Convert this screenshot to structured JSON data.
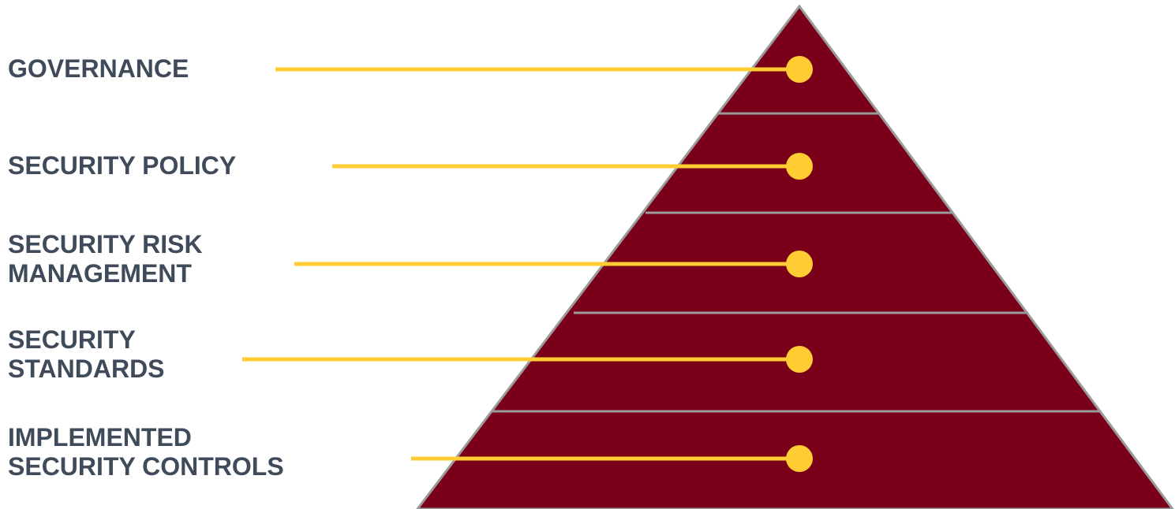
{
  "diagram": {
    "colors": {
      "pyramid_fill": "#7a0019",
      "pyramid_border": "#9b9b9b",
      "connector": "#ffcc33",
      "label_text": "#3f4b5a"
    },
    "tiers": [
      {
        "label": "GOVERNANCE"
      },
      {
        "label": "SECURITY POLICY"
      },
      {
        "label": "SECURITY RISK\nMANAGEMENT"
      },
      {
        "label": "SECURITY\nSTANDARDS"
      },
      {
        "label": "IMPLEMENTED\nSECURITY CONTROLS"
      }
    ]
  }
}
